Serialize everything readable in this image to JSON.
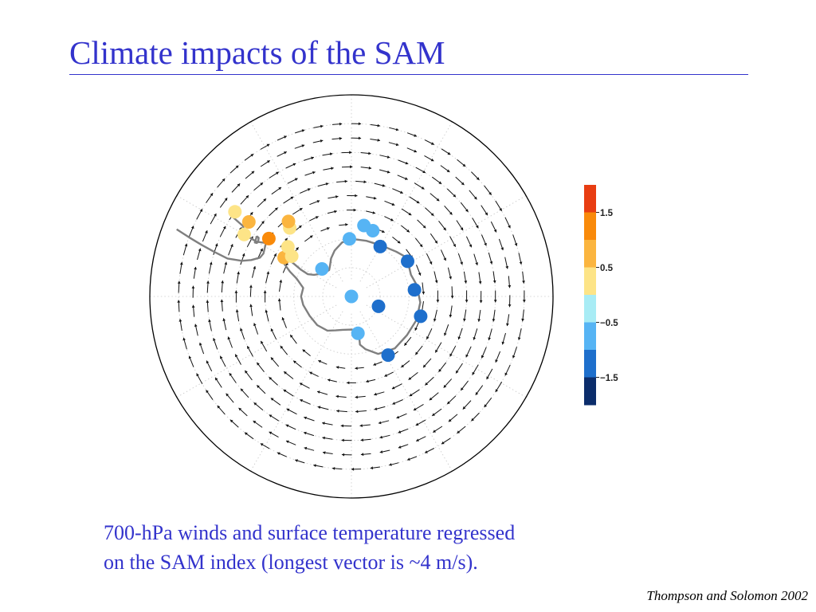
{
  "slide": {
    "title": "Climate impacts of the SAM",
    "caption_line1": "700-hPa winds and surface temperature regressed",
    "caption_line2": "on the SAM index (longest vector is ~4 m/s).",
    "credit": "Thompson and Solomon 2002"
  },
  "colorbar": {
    "tick_labels": [
      "1.5",
      "0.5",
      "−0.5",
      "−1.5"
    ],
    "colors": [
      "#e83d12",
      "#f98a0a",
      "#fbb53f",
      "#fde487",
      "#a8ecf5",
      "#56b4f4",
      "#1e6fcc",
      "#0b2d6b"
    ]
  },
  "stations": [
    {
      "lon": 148,
      "lat": -66,
      "color": "#1e6fcc"
    },
    {
      "lon": 106,
      "lat": -65,
      "color": "#1e6fcc"
    },
    {
      "lon": 84,
      "lat": -68,
      "color": "#1e6fcc"
    },
    {
      "lon": 58,
      "lat": -67,
      "color": "#1e6fcc"
    },
    {
      "lon": 110,
      "lat": -80,
      "color": "#1e6fcc"
    },
    {
      "lon": 170,
      "lat": -77,
      "color": "#56b4f4"
    },
    {
      "lon": 0,
      "lat": -90,
      "color": "#56b4f4"
    },
    {
      "lon": 30,
      "lat": -70,
      "color": "#1e6fcc"
    },
    {
      "lon": 18,
      "lat": -66,
      "color": "#56b4f4"
    },
    {
      "lon": 10,
      "lat": -65,
      "color": "#56b4f4"
    },
    {
      "lon": -2,
      "lat": -70,
      "color": "#56b4f4"
    },
    {
      "lon": -47,
      "lat": -76,
      "color": "#56b4f4"
    },
    {
      "lon": -60,
      "lat": -63,
      "color": "#fbb53f"
    },
    {
      "lon": -56,
      "lat": -65,
      "color": "#fde487"
    },
    {
      "lon": -52,
      "lat": -62,
      "color": "#fde487"
    },
    {
      "lon": -55,
      "lat": -55,
      "color": "#f98a0a"
    },
    {
      "lon": -42,
      "lat": -58,
      "color": "#fde487"
    },
    {
      "lon": -40,
      "lat": -56,
      "color": "#fbb53f"
    },
    {
      "lon": -60,
      "lat": -47,
      "color": "#fde487"
    },
    {
      "lon": -54,
      "lat": -46,
      "color": "#fbb53f"
    },
    {
      "lon": -54,
      "lat": -40,
      "color": "#fde487"
    }
  ]
}
